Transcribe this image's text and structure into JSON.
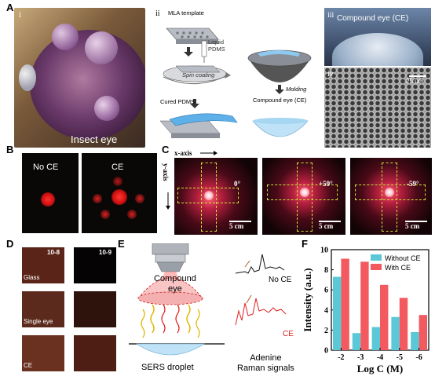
{
  "panels": {
    "A": {
      "label": "A",
      "sub_i": "i",
      "sub_ii": "ii",
      "sub_iii": "iii",
      "sub_iv": "iv",
      "insect_eye": "Insect eye",
      "mla_template": "MLA template",
      "liquid_pdms": "Liquid\nPDMS",
      "spin_coating": "Spin coating",
      "cured_pdms": "Cured PDMS",
      "molding": "Molding",
      "compound_eye_ce": "Compound eye (CE)",
      "iii_title": "Compound eye (CE)",
      "scale_bar": "25 μm"
    },
    "B": {
      "label": "B",
      "no_ce": "No CE",
      "ce": "CE"
    },
    "C": {
      "label": "C",
      "x_axis": "x-axis",
      "y_axis": "y-axis",
      "angles": [
        "0°",
        "+59°",
        "-59°"
      ],
      "scale": "5 cm"
    },
    "D": {
      "label": "D",
      "conc_left": "10-8",
      "conc_right": "10-9",
      "rows": [
        "Glass",
        "Single eye",
        "CE"
      ]
    },
    "E": {
      "label": "E",
      "compound_eye": "Compound\neye",
      "sers_droplet": "SERS droplet",
      "no_ce": "No CE",
      "ce": "CE",
      "adenine": "Adenine\nRaman signals"
    },
    "F": {
      "label": "F"
    }
  },
  "colors": {
    "without_ce": "#5bc8d8",
    "with_ce": "#f25a60"
  },
  "chart_data": {
    "type": "bar",
    "categories": [
      "-2",
      "-3",
      "-4",
      "-5",
      "-6"
    ],
    "series": [
      {
        "name": "Without CE",
        "values": [
          7.3,
          1.7,
          2.3,
          3.3,
          1.8
        ]
      },
      {
        "name": "With CE",
        "values": [
          9.1,
          8.8,
          6.5,
          5.2,
          3.5
        ]
      }
    ],
    "title": "",
    "xlabel": "Log C (M)",
    "ylabel": "Intensity (a.u.)",
    "ylim": [
      0,
      10
    ],
    "yticks": [
      0,
      2,
      4,
      6,
      8,
      10
    ],
    "legend": "top-right",
    "grid": false
  }
}
